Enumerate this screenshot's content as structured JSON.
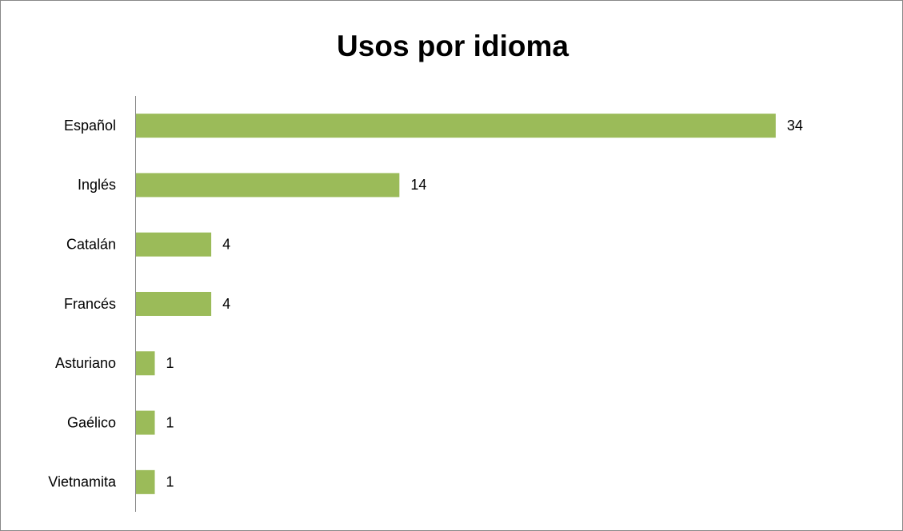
{
  "chart_data": {
    "type": "bar",
    "orientation": "horizontal",
    "title": "Usos por idioma",
    "categories": [
      "Español",
      "Inglés",
      "Catalán",
      "Francés",
      "Asturiano",
      "Gaélico",
      "Vietnamita"
    ],
    "values": [
      34,
      14,
      4,
      4,
      1,
      1,
      1
    ],
    "color": "#9bbb59",
    "xlim": [
      0,
      40
    ],
    "data_labels": true
  }
}
